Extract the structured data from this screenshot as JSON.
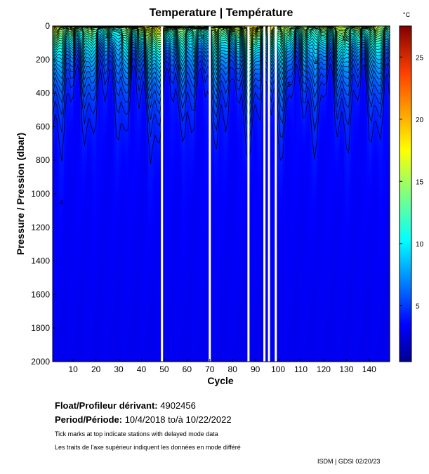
{
  "chart_data": {
    "type": "heatmap",
    "title": "Temperature | Température",
    "xlabel": "Cycle",
    "ylabel": "Pressure / Pression (dbar)",
    "colorbar_unit": "°C",
    "xlim": [
      1,
      149
    ],
    "ylim": [
      0,
      2000
    ],
    "y_inverted": true,
    "x_ticks": [
      10,
      20,
      30,
      40,
      50,
      60,
      70,
      80,
      90,
      100,
      110,
      120,
      130,
      140
    ],
    "y_ticks": [
      0,
      200,
      400,
      600,
      800,
      1000,
      1200,
      1400,
      1600,
      1800,
      2000
    ],
    "colorbar_range": [
      0.5,
      27.5
    ],
    "colorbar_ticks": [
      5,
      10,
      15,
      20,
      25
    ],
    "colormap": [
      "#00008f",
      "#0000ff",
      "#0080ff",
      "#00ffff",
      "#80ff80",
      "#ffff00",
      "#ff8000",
      "#ff0000",
      "#800000"
    ],
    "surface_temperature_by_cycle": [
      {
        "cycle": 1,
        "temp": 17
      },
      {
        "cycle": 10,
        "temp": 16
      },
      {
        "cycle": 20,
        "temp": 14
      },
      {
        "cycle": 30,
        "temp": 13
      },
      {
        "cycle": 40,
        "temp": 17
      },
      {
        "cycle": 46,
        "temp": 19
      },
      {
        "cycle": 55,
        "temp": 15
      },
      {
        "cycle": 65,
        "temp": 14
      },
      {
        "cycle": 75,
        "temp": 16
      },
      {
        "cycle": 84,
        "temp": 17
      },
      {
        "cycle": 90,
        "temp": 19
      },
      {
        "cycle": 98,
        "temp": 17
      },
      {
        "cycle": 105,
        "temp": 15
      },
      {
        "cycle": 115,
        "temp": 14
      },
      {
        "cycle": 125,
        "temp": 16
      },
      {
        "cycle": 135,
        "temp": 15
      },
      {
        "cycle": 148,
        "temp": 15
      }
    ],
    "deep_temperature": 4,
    "contour_labels_visible": [
      "4",
      "5",
      "6",
      "7",
      "8",
      "9",
      "10",
      "12",
      "14",
      "15",
      "16",
      "17",
      "18"
    ],
    "missing_cycles": [
      49,
      70,
      87,
      94,
      96,
      99
    ],
    "delayed_mode_ticks": [
      9,
      18,
      76
    ]
  },
  "info": {
    "float_label": "Float/Profileur dérivant:",
    "float_id": "4902456",
    "period_label": "Period/Période:",
    "period_start": "10/4/2018",
    "period_to": "to/à",
    "period_end": "10/22/2022",
    "note_en": "Tick marks at top indicate stations with delayed mode data",
    "note_fr": "Les traits de l'axe supérieur indiquent les données en mode différé",
    "credit": "ISDM | GDSI  02/20/23"
  }
}
